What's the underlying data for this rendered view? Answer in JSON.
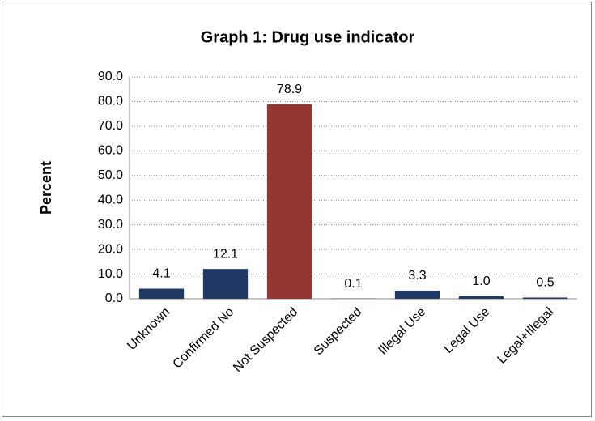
{
  "chart_data": {
    "type": "bar",
    "title": "Graph 1: Drug use indicator",
    "y_label": "Percent",
    "categories": [
      "Unknown",
      "Confirmed No",
      "Not Suspected",
      "Suspected",
      "Illegal Use",
      "Legal Use",
      "Legal+Illegal"
    ],
    "values": [
      4.1,
      12.1,
      78.9,
      0.1,
      3.3,
      1.0,
      0.5
    ],
    "value_labels": [
      "4.1",
      "12.1",
      "78.9",
      "0.1",
      "3.3",
      "1.0",
      "0.5"
    ],
    "colors": [
      "#1f3864",
      "#1f3864",
      "#943634",
      "#1f3864",
      "#1f3864",
      "#1f3864",
      "#1f3864"
    ],
    "ylim": [
      0,
      90
    ],
    "yticks": [
      {
        "value": 0,
        "label": "0.0"
      },
      {
        "value": 10,
        "label": "10.0"
      },
      {
        "value": 20,
        "label": "20.0"
      },
      {
        "value": 30,
        "label": "30.0"
      },
      {
        "value": 40,
        "label": "40.0"
      },
      {
        "value": 50,
        "label": "50.0"
      },
      {
        "value": 60,
        "label": "60.0"
      },
      {
        "value": 70,
        "label": "70.0"
      },
      {
        "value": 80,
        "label": "80.0"
      },
      {
        "value": 90,
        "label": "90.0"
      }
    ],
    "grid": true
  }
}
